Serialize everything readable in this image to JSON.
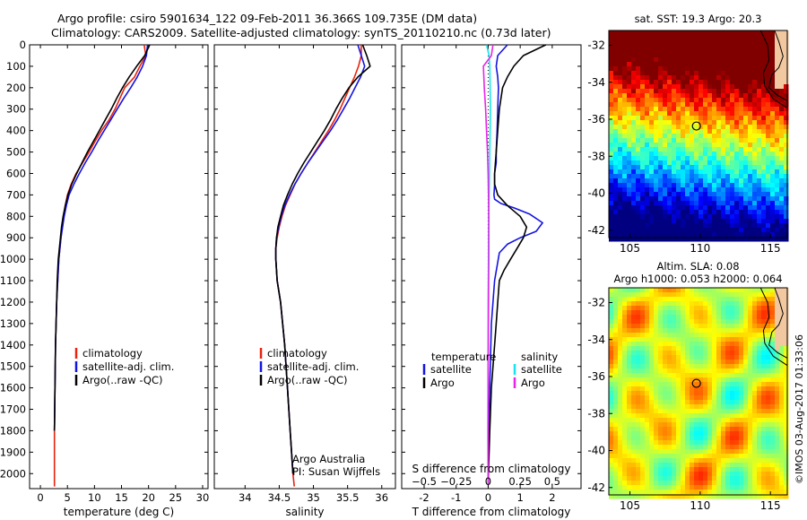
{
  "header": {
    "line1": "Argo profile: csiro 5901634_122 09-Feb-2011 36.366S 109.735E (DM data)",
    "line2": "Climatology: CARS2009. Satellite-adjusted climatology: synTS_20110210.nc (0.73d later)"
  },
  "side_text": "©IMOS 03-Aug-2017 01:33:06",
  "colors": {
    "climatology": "#e8220e",
    "satellite": "#1414e0",
    "argo": "#000000",
    "salinity_sat": "#19e3f0",
    "salinity_argo": "#e625e6"
  },
  "chart_data": [
    {
      "type": "line",
      "xlabel": "temperature (deg C)",
      "ylabel": "",
      "xlim": [
        -2,
        31
      ],
      "ylim": [
        2070,
        0
      ],
      "xticks": [
        0,
        5,
        10,
        15,
        20,
        25,
        30
      ],
      "yticks": [
        0,
        100,
        200,
        300,
        400,
        500,
        600,
        700,
        800,
        900,
        1000,
        1100,
        1200,
        1300,
        1400,
        1500,
        1600,
        1700,
        1800,
        1900,
        2000
      ],
      "legend": [
        "climatology",
        "satellite-adj. clim.",
        "Argo(..raw -QC)"
      ],
      "legend_position": "lower-middle",
      "series": [
        {
          "name": "climatology",
          "color": "#e8220e",
          "x": [
            19.2,
            19.5,
            18.4,
            17.4,
            15.6,
            14.7,
            13.8,
            12.7,
            11.3,
            10.1,
            9.0,
            7.8,
            6.6,
            5.7,
            5.0,
            4.6,
            4.3,
            4.0,
            3.8,
            3.6,
            3.4,
            3.2,
            3.0,
            2.8,
            2.7,
            2.6,
            2.6
          ],
          "y": [
            0,
            50,
            100,
            150,
            200,
            250,
            300,
            350,
            400,
            450,
            500,
            550,
            600,
            650,
            700,
            750,
            800,
            850,
            900,
            950,
            1000,
            1100,
            1200,
            1400,
            1600,
            1800,
            2060
          ]
        },
        {
          "name": "satellite-adj. clim.",
          "color": "#1414e0",
          "x": [
            19.8,
            19.6,
            18.9,
            17.9,
            16.7,
            15.4,
            14.2,
            13.0,
            11.8,
            10.6,
            9.5,
            8.3,
            7.2,
            6.2,
            5.3,
            4.8,
            4.4,
            4.1,
            3.8,
            3.6,
            3.4,
            3.2,
            3.0,
            2.8,
            2.7,
            2.6
          ],
          "y": [
            0,
            50,
            100,
            150,
            200,
            250,
            300,
            350,
            400,
            450,
            500,
            550,
            600,
            650,
            700,
            750,
            800,
            850,
            900,
            950,
            1000,
            1100,
            1200,
            1400,
            1600,
            1800
          ]
        },
        {
          "name": "Argo(..raw -QC)",
          "color": "#000000",
          "x": [
            20.2,
            19.3,
            17.8,
            16.4,
            15.2,
            14.1,
            13.1,
            12.0,
            10.9,
            9.8,
            8.7,
            7.7,
            6.7,
            5.8,
            5.1,
            4.6,
            4.2,
            3.9,
            3.7,
            3.5,
            3.3,
            3.1,
            3.0,
            2.8,
            2.7,
            2.6
          ],
          "y": [
            0,
            50,
            100,
            150,
            200,
            250,
            300,
            350,
            400,
            450,
            500,
            550,
            600,
            650,
            700,
            750,
            800,
            850,
            900,
            950,
            1000,
            1100,
            1200,
            1400,
            1600,
            1800
          ]
        }
      ]
    },
    {
      "type": "line",
      "xlabel": "salinity",
      "xlim": [
        33.55,
        36.2
      ],
      "ylim": [
        2070,
        0
      ],
      "xticks": [
        34,
        34.5,
        35,
        35.5,
        36
      ],
      "xticklabels": [
        "34",
        "34.5",
        "35",
        "35.5",
        "36"
      ],
      "legend": [
        "climatology",
        "satellite-adj. clim.",
        "Argo(..raw -QC)"
      ],
      "legend_position": "lower-middle",
      "annotation": [
        "Argo Australia",
        "PI: Susan Wijffels"
      ],
      "series": [
        {
          "name": "climatology",
          "color": "#e8220e",
          "x": [
            35.7,
            35.7,
            35.66,
            35.6,
            35.53,
            35.46,
            35.39,
            35.31,
            35.22,
            35.12,
            35.02,
            34.92,
            34.82,
            34.73,
            34.66,
            34.59,
            34.54,
            34.5,
            34.47,
            34.45,
            34.45,
            34.47,
            34.52,
            34.58,
            34.62,
            34.66,
            34.7,
            34.72
          ],
          "y": [
            0,
            50,
            100,
            150,
            200,
            250,
            300,
            350,
            400,
            450,
            500,
            550,
            600,
            650,
            700,
            750,
            800,
            850,
            900,
            950,
            1000,
            1100,
            1200,
            1400,
            1600,
            1800,
            2000,
            2060
          ]
        },
        {
          "name": "satellite-adj. clim.",
          "color": "#1414e0",
          "x": [
            35.65,
            35.7,
            35.75,
            35.69,
            35.61,
            35.53,
            35.44,
            35.35,
            35.25,
            35.14,
            35.03,
            34.92,
            34.82,
            34.73,
            34.65,
            34.58,
            34.53,
            34.49,
            34.46,
            34.45,
            34.45,
            34.47,
            34.52,
            34.58,
            34.62,
            34.66,
            34.7
          ],
          "y": [
            0,
            50,
            100,
            150,
            200,
            250,
            300,
            350,
            400,
            450,
            500,
            550,
            600,
            650,
            700,
            750,
            800,
            850,
            900,
            950,
            1000,
            1100,
            1200,
            1400,
            1600,
            1800,
            2000
          ]
        },
        {
          "name": "Argo(..raw -QC)",
          "color": "#000000",
          "x": [
            35.72,
            35.78,
            35.83,
            35.65,
            35.52,
            35.42,
            35.33,
            35.25,
            35.16,
            35.06,
            34.96,
            34.86,
            34.77,
            34.69,
            34.62,
            34.56,
            34.52,
            34.48,
            34.46,
            34.45,
            34.45,
            34.47,
            34.52,
            34.58,
            34.62,
            34.66,
            34.7
          ],
          "y": [
            0,
            50,
            100,
            150,
            200,
            250,
            300,
            350,
            400,
            450,
            500,
            550,
            600,
            650,
            700,
            750,
            800,
            850,
            900,
            950,
            1000,
            1100,
            1200,
            1400,
            1600,
            1800,
            2000
          ]
        }
      ]
    },
    {
      "type": "line",
      "xlabel": "T difference from climatology",
      "top_xlabel": "S difference from climatology",
      "xlim": [
        -2.7,
        2.9
      ],
      "ylim": [
        2070,
        0
      ],
      "xticks": [
        -2,
        -1,
        0,
        1,
        2
      ],
      "s_xticks": [
        -0.5,
        -0.25,
        0,
        0.25,
        0.5
      ],
      "s_xticklabels": [
        "−0.5",
        "−0.25",
        "0",
        "0.25",
        "0.5"
      ],
      "legend_titles": [
        "temperature",
        "salinity"
      ],
      "legend": [
        "satellite",
        "Argo",
        "satellite",
        "Argo"
      ],
      "series": [
        {
          "name": "satellite",
          "group": "temperature",
          "color": "#1414e0",
          "x": [
            0.6,
            0.3,
            0.25,
            0.3,
            0.32,
            0.3,
            0.28,
            0.25,
            0.25,
            0.2,
            0.2,
            0.18,
            0.2,
            0.4,
            0.8,
            1.3,
            1.7,
            1.5,
            1.0,
            0.6,
            0.35,
            0.2,
            0.1,
            0.05,
            0.0,
            0.0
          ],
          "y": [
            0,
            50,
            100,
            150,
            200,
            300,
            400,
            500,
            550,
            600,
            650,
            700,
            720,
            740,
            760,
            790,
            830,
            870,
            900,
            930,
            970,
            1100,
            1300,
            1600,
            1900,
            2050
          ]
        },
        {
          "name": "Argo",
          "group": "temperature",
          "color": "#000000",
          "x": [
            1.8,
            1.1,
            0.8,
            0.6,
            0.45,
            0.35,
            0.3,
            0.25,
            0.2,
            0.2,
            0.3,
            0.6,
            1.0,
            1.2,
            1.1,
            0.9,
            0.7,
            0.5,
            0.35,
            0.3,
            0.25,
            0.2,
            0.15,
            0.1,
            0.05,
            0.0
          ],
          "y": [
            0,
            50,
            100,
            150,
            200,
            300,
            400,
            500,
            600,
            650,
            700,
            750,
            800,
            850,
            900,
            950,
            1000,
            1050,
            1100,
            1200,
            1300,
            1400,
            1500,
            1600,
            1800,
            2050
          ]
        },
        {
          "name": "satellite",
          "group": "salinity",
          "color": "#19e3f0",
          "x": [
            -0.05,
            0.03,
            0.05,
            0.06,
            0.07,
            0.06,
            0.05,
            0.04,
            0.03,
            0.02,
            0.01,
            0.0,
            0.0,
            -0.01,
            0.0
          ],
          "y": [
            0,
            50,
            100,
            200,
            300,
            400,
            500,
            600,
            700,
            800,
            1000,
            1200,
            1500,
            1800,
            2050
          ]
        },
        {
          "name": "Argo",
          "group": "salinity",
          "color": "#e625e6",
          "x": [
            0.15,
            0.1,
            -0.15,
            -0.12,
            -0.08,
            -0.05,
            -0.02,
            0.0,
            0.01,
            0.02,
            0.02,
            0.01,
            0.0,
            0.0,
            0.0
          ],
          "y": [
            0,
            50,
            100,
            200,
            300,
            400,
            500,
            600,
            700,
            800,
            1000,
            1200,
            1500,
            1800,
            2050
          ]
        }
      ]
    },
    {
      "type": "heatmap",
      "title": "sat. SST: 19.3 Argo: 20.3",
      "xlim": [
        103.5,
        116.2
      ],
      "ylim": [
        -42.4,
        -31.2
      ],
      "xticks": [
        105,
        110,
        115
      ],
      "yticks": [
        -32,
        -34,
        -36,
        -38,
        -40,
        -42
      ],
      "marker": {
        "lon": 109.735,
        "lat": -36.366
      }
    },
    {
      "type": "heatmap",
      "title": "Altim. SLA: 0.08",
      "subtitle": "Argo h1000: 0.053 h2000: 0.064",
      "xlim": [
        103.5,
        116.2
      ],
      "ylim": [
        -42.4,
        -31.2
      ],
      "xticks": [
        105,
        110,
        115
      ],
      "yticks": [
        -32,
        -34,
        -36,
        -38,
        -40,
        -42
      ],
      "marker": {
        "lon": 109.735,
        "lat": -36.366
      }
    }
  ]
}
